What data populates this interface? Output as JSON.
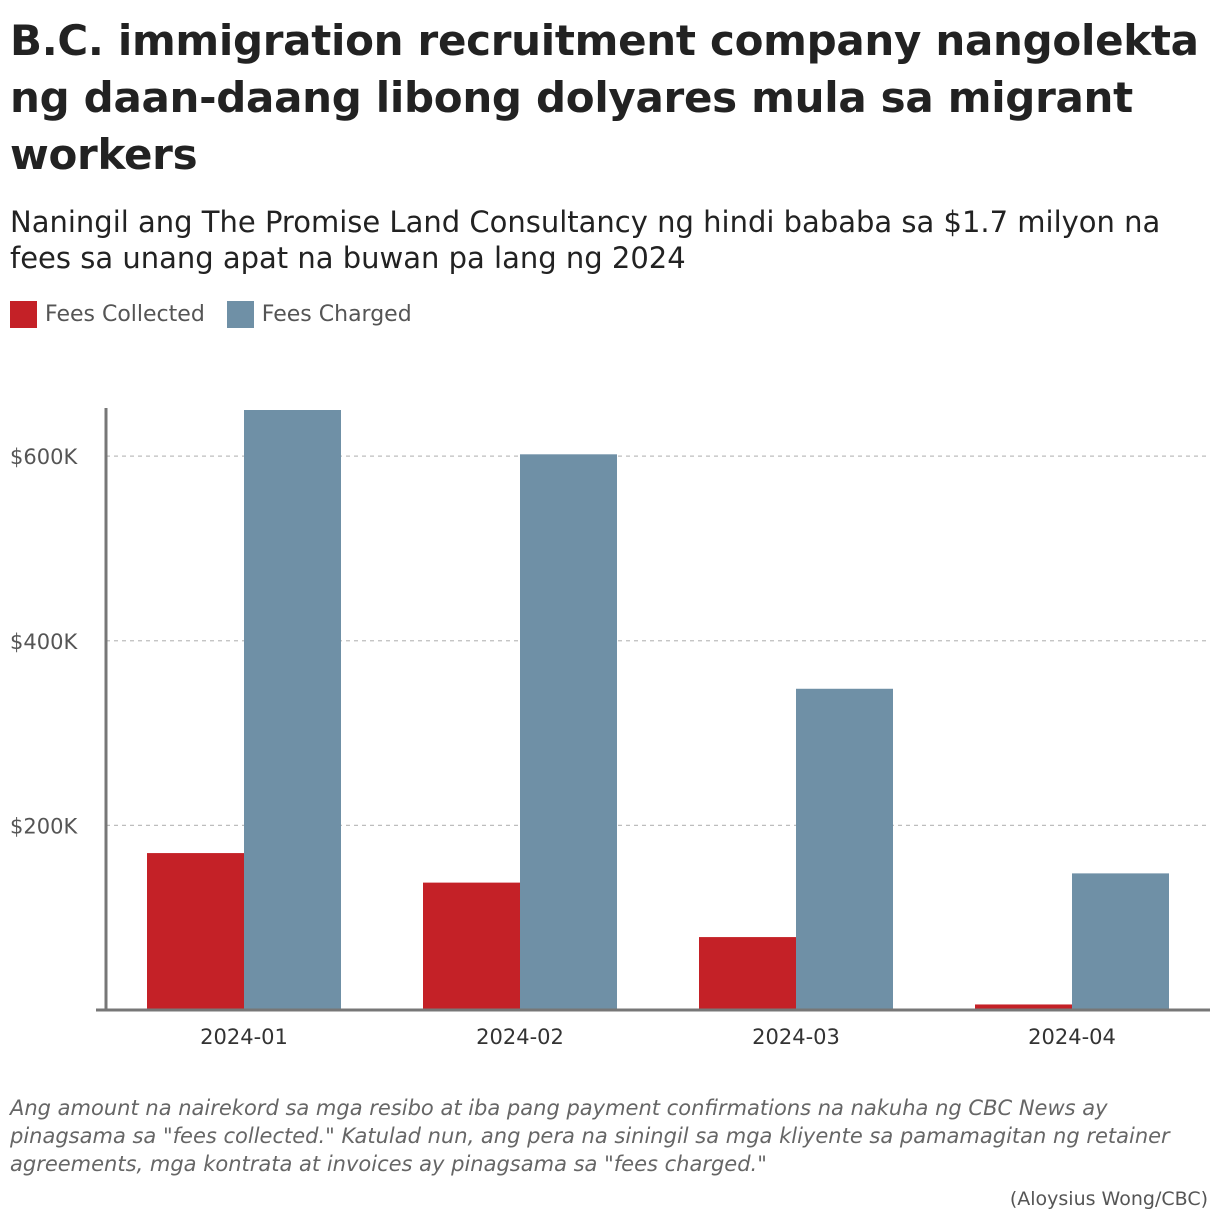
{
  "title": "B.C. immigration recruitment company nangolekta ng daan-daang libong dolyares mula sa migrant workers",
  "subtitle": "Naningil ang The Promise Land Consultancy ng hindi bababa sa $1.7 milyon na fees sa unang apat na buwan pa lang ng 2024",
  "note": "Ang amount na nairekord sa mga resibo at iba pang payment confirmations na nakuha ng CBC News ay pinagsama sa \"fees collected.\" Katulad nun, ang pera na siningil sa mga kliyente sa pamamagitan ng retainer agreements, mga kontrata at invoices ay pinagsama sa \"fees charged.\"",
  "source": "(Aloysius Wong/CBC)",
  "chart_data": {
    "type": "bar",
    "categories": [
      "2024-01",
      "2024-02",
      "2024-03",
      "2024-04"
    ],
    "series": [
      {
        "name": "Fees Collected",
        "color": "#c42127",
        "values": [
          170000,
          138000,
          79000,
          6000
        ]
      },
      {
        "name": "Fees Charged",
        "color": "#6f90a6",
        "values": [
          650000,
          602000,
          348000,
          148000
        ]
      }
    ],
    "yticks": [
      {
        "value": 200000,
        "label": "$200K"
      },
      {
        "value": 400000,
        "label": "$400K"
      },
      {
        "value": 600000,
        "label": "$600K"
      }
    ],
    "ylim": [
      0,
      650000
    ],
    "grid": true,
    "legend_position": "top-left",
    "xlabel": "",
    "ylabel": ""
  }
}
